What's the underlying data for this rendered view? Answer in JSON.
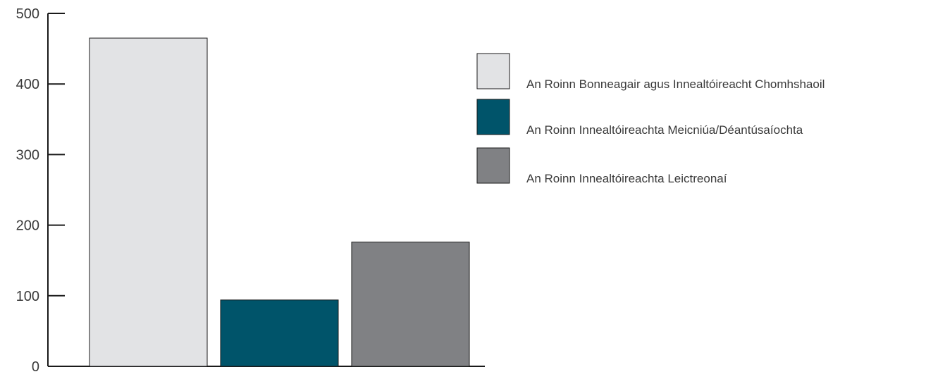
{
  "chart_data": {
    "type": "bar",
    "title": "",
    "xlabel": "",
    "ylabel": "",
    "ylim": [
      0,
      500
    ],
    "yticks": [
      0,
      100,
      200,
      300,
      400,
      500
    ],
    "grid": false,
    "legend_position": "right",
    "bar_edge_color": "#1a1a1a",
    "series": [
      {
        "name": "An Roinn Bonneagair agus Innealtóireacht Chomhshaoil",
        "value": 465,
        "color": "#e2e3e5"
      },
      {
        "name": "An Roinn Innealtóireachta Meicniúa/Déantúsaíochta",
        "value": 94,
        "color": "#00546a"
      },
      {
        "name": "An Roinn Innealtóireachta Leictreonaí",
        "value": 176,
        "color": "#808184"
      }
    ]
  }
}
